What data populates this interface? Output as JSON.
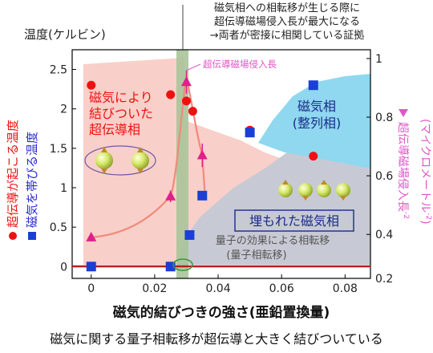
{
  "chart_data": {
    "type": "scatter",
    "x_range": [
      -0.006,
      0.088
    ],
    "xlabel": "磁気的結びつきの強さ(亜鉛置換量)",
    "x_ticks": [
      0,
      0.02,
      0.04,
      0.06,
      0.08
    ],
    "x_tick_labels": [
      "0",
      "0.02",
      "0.04",
      "0.06",
      "0.08"
    ],
    "left_axis": {
      "title": "温度(ケルビン)",
      "range": [
        -0.15,
        2.75
      ],
      "ticks": [
        0,
        0.5,
        1,
        1.5,
        2,
        2.5
      ],
      "tick_labels": [
        "0",
        "0.5",
        "1",
        "1.5",
        "2",
        "2.5"
      ],
      "label_red": "超伝導が起こる温度",
      "label_blue": "磁気を帯びる温度"
    },
    "right_axis": {
      "range": [
        0.25,
        1.03
      ],
      "ticks": [
        0.2,
        0.4,
        0.6,
        0.8,
        1
      ],
      "tick_labels": [
        "0.2",
        "0.4",
        "0.6",
        "0.8",
        "1"
      ],
      "label": "超伝導磁場侵入長",
      "label_sup": "-2",
      "label_sub": "(マイクロメートル",
      "label_sub_close": ")"
    },
    "series": [
      {
        "name": "超伝導が起こる温度",
        "axis": "left",
        "marker": "circle",
        "color": "#ee1111",
        "x": [
          0,
          0.025,
          0.03,
          0.032,
          0.05,
          0.07
        ],
        "y": [
          2.3,
          2.18,
          2.1,
          1.97,
          1.73,
          1.4
        ]
      },
      {
        "name": "磁気を帯びる温度",
        "axis": "left",
        "marker": "square",
        "color": "#1a3fd6",
        "x": [
          0,
          0.025,
          0.031,
          0.035,
          0.05,
          0.07
        ],
        "y": [
          0,
          0,
          0.4,
          0.9,
          1.7,
          2.3
        ]
      },
      {
        "name": "超伝導磁場侵入長",
        "axis": "right",
        "marker": "triangle",
        "color": "#e0208a",
        "x": [
          0,
          0.025,
          0.03,
          0.035
        ],
        "y": [
          0.39,
          0.53,
          0.92,
          0.67
        ],
        "err": [
          0,
          0.02,
          0.04,
          0.04
        ]
      }
    ],
    "annotations": {
      "top_note": [
        "磁気相への相転移が生じる際に",
        "超伝導磁場侵入長が最大になる",
        "→両者が密接に相関している証拠"
      ],
      "peak_label": "超伝導磁場侵入長",
      "sc_region": [
        "磁気により",
        "結びついた",
        "超伝導相"
      ],
      "mag_region": [
        "磁気相",
        "(整列相)"
      ],
      "buried": "埋もれた磁気相",
      "qpt": [
        "量子の効果による相転移",
        "(量子相転移)"
      ]
    },
    "caption": "磁気に関する量子相転移が超伝導と大きく結びついている"
  },
  "colors": {
    "sc_fill": "#f9cfc9",
    "mag_fill": "#8fd8f0",
    "buried_fill": "#c7cad4",
    "band": "#a8c49a",
    "curve": "#f08a7a",
    "text_red": "#ee1111",
    "text_blue": "#2b2bd0",
    "text_pink": "#e055c8"
  }
}
